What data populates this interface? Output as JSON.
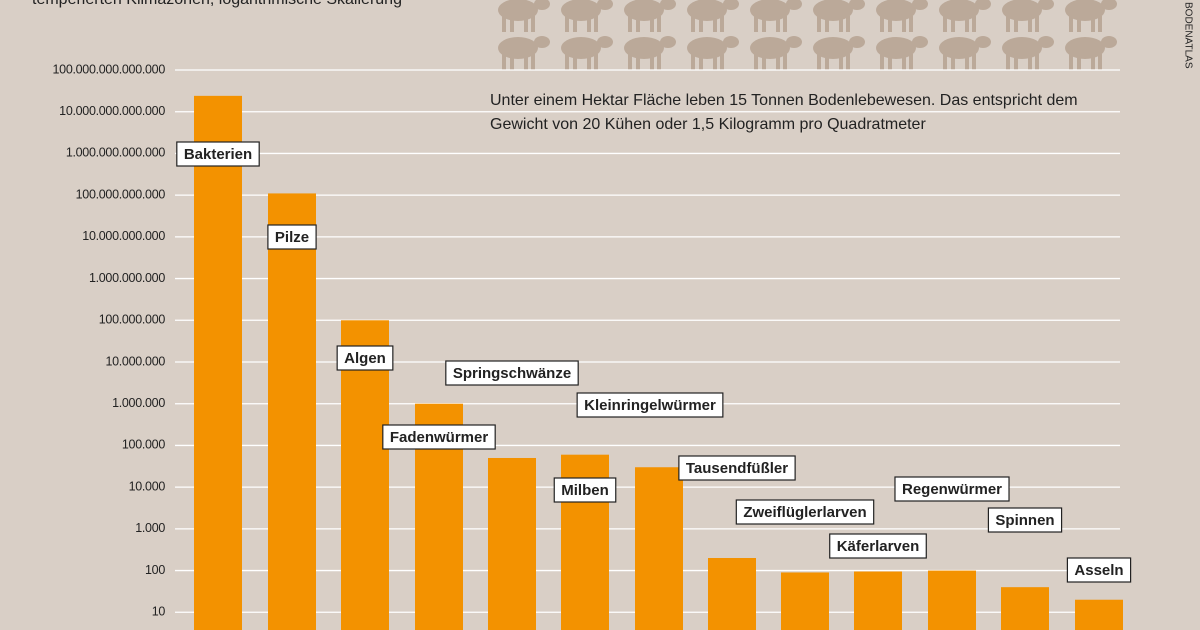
{
  "chart_data": {
    "type": "bar",
    "subtitle": "temperierten Klimazonen, logarithmische Skalierung",
    "annotation": [
      "Unter einem Hektar Fläche leben 15 Tonnen Bodenlebewesen. Das entspricht dem",
      "Gewicht von 20 Kühen oder 1,5 Kilogramm pro Quadratmeter"
    ],
    "source": "BODENATLAS",
    "categories": [
      "Bakterien",
      "Pilze",
      "Algen",
      "Fadenwürmer",
      "Springschwänze",
      "Milben",
      "Kleinringelwürmer",
      "Tausendfüßler",
      "Zweiflüglerlarven",
      "Käferlarven",
      "Regenwürmer",
      "Spinnen",
      "Asseln"
    ],
    "values": [
      24000000000000,
      110000000000,
      100000000,
      1000000,
      50000,
      60000,
      30000,
      200,
      90,
      95,
      100,
      40,
      20
    ],
    "color": "#f39200",
    "log_scale": true,
    "grid": true,
    "ylim": [
      1,
      100000000000000
    ],
    "yticks": [
      10,
      100,
      {
        "value": 1000,
        "label": "1.000"
      },
      {
        "value": 10000,
        "label": "10.000"
      },
      {
        "value": 100000,
        "label": "100.000"
      },
      {
        "value": 1000000,
        "label": "1.000.000"
      },
      {
        "value": 10000000,
        "label": "10.000.000"
      },
      {
        "value": 100000000,
        "label": "100.000.000"
      },
      {
        "value": 1000000000,
        "label": "1.000.000.000"
      },
      {
        "value": 10000000000,
        "label": "10.000.000.000"
      },
      {
        "value": 100000000000,
        "label": "100.000.000.000"
      },
      {
        "value": 1000000000000,
        "label": "1.000.000.000.000"
      },
      {
        "value": 10000000000000,
        "label": "10.000.000.000.000"
      },
      {
        "value": 100000000000000,
        "label": "100.000.000.000.000"
      }
    ]
  }
}
